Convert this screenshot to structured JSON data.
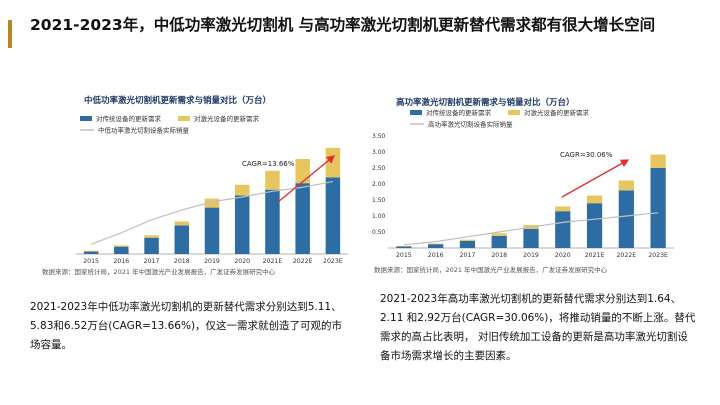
{
  "slide": {
    "title": "2021-2023年，中低功率激光切割机 与高功率激光切割机更新替代需求都有很大增长空间",
    "left_paragraph": "2021-2023年中低功率激光切割机的更新替代需求分别达到5.11、 5.83和6.52万台(CAGR=13.66%)，仅这一需求就创造了可观的市场容量。",
    "right_paragraph": "2021-2023年高功率激光切割机的更新替代需求分别达到1.64、2.11 和2.92万台(CAGR=30.06%)，将推动销量的不断上涨。替代需求的高占比表明， 对旧传统加工设备的更新是高功率激光切割设备市场需求增长的主要因素。"
  },
  "chart_data": [
    {
      "type": "bar",
      "title": "中低功率激光切割机更新需求与销量对比（万台）",
      "source": "数据来源：国家统计局，2021 年中国激光产业发展报告，广发证券发展研究中心",
      "categories": [
        "2015",
        "2016",
        "2017",
        "2018",
        "2019",
        "2020",
        "2021E",
        "2022E",
        "2023E"
      ],
      "series": [
        {
          "name": "对传统设备的更新需求",
          "color": "#2e6da4",
          "values": [
            0.15,
            0.45,
            1.0,
            1.75,
            2.85,
            3.6,
            3.95,
            4.35,
            4.7
          ]
        },
        {
          "name": "对激光设备的更新需求",
          "color": "#e8c65f",
          "values": [
            0.05,
            0.08,
            0.15,
            0.25,
            0.55,
            0.65,
            1.16,
            1.48,
            1.82
          ]
        },
        {
          "name": "中低功率激光切割设备实际销量",
          "color": "#bfbfbf",
          "type": "line",
          "values": [
            0.6,
            1.3,
            2.1,
            2.7,
            3.2,
            3.5,
            3.85,
            4.1,
            4.45
          ]
        }
      ],
      "ylim": [
        0,
        7
      ],
      "annotation": "CAGR=13.66%",
      "annotation_color": "#e03030"
    },
    {
      "type": "bar",
      "title": "高功率激光切割机更新需求与销量对比（万台）",
      "source": "数据来源：国家统计局，2021 年中国激光产业发展报告，广发证券发展研究中心",
      "categories": [
        "2015",
        "2016",
        "2017",
        "2018",
        "2019",
        "2020",
        "2021E",
        "2022E",
        "2023E"
      ],
      "yticks": [
        "0.50",
        "1.00",
        "1.50",
        "2.00",
        "2.50",
        "3.00",
        "3.50"
      ],
      "series": [
        {
          "name": "对传统设备的更新需求",
          "color": "#2e6da4",
          "values": [
            0.05,
            0.12,
            0.22,
            0.38,
            0.6,
            1.15,
            1.4,
            1.8,
            2.5
          ]
        },
        {
          "name": "对激光设备的更新需求",
          "color": "#e8c65f",
          "values": [
            0.01,
            0.02,
            0.04,
            0.08,
            0.12,
            0.15,
            0.24,
            0.31,
            0.42
          ]
        },
        {
          "name": "高功率激光切割设备实际销量",
          "color": "#bfbfbf",
          "type": "line",
          "values": [
            0.1,
            0.2,
            0.35,
            0.5,
            0.65,
            0.8,
            0.9,
            1.0,
            1.1
          ]
        }
      ],
      "ylim": [
        0,
        3.5
      ],
      "annotation": "CAGR=30.06%",
      "annotation_color": "#e03030"
    }
  ]
}
